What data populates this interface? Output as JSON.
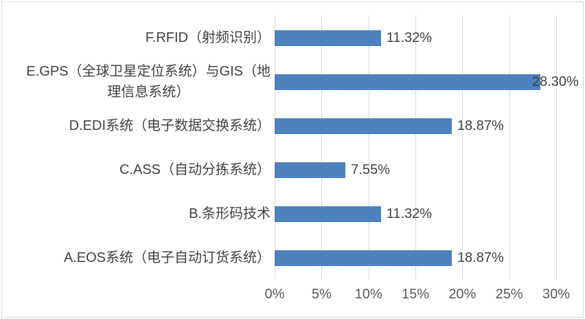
{
  "figure": {
    "background_color": "#ffffff",
    "border_color": "#d8d8d8"
  },
  "chart_data": {
    "type": "bar",
    "orientation": "horizontal",
    "title": "",
    "xlabel": "",
    "ylabel": "",
    "categories": [
      "F.RFID（射频识别）",
      "E.GPS（全球卫星定位系统）与GIS（地理信息系统）",
      "D.EDI系统（电子数据交换系统）",
      "C.ASS（自动分拣系统）",
      "B.条形码技术",
      "A.EOS系统（电子自动订货系统）"
    ],
    "categories_display": [
      "F.RFID（射频识别）",
      "E.GPS（全球卫星定位系统）与GIS（地\n理信息系统）",
      "D.EDI系统（电子数据交换系统）",
      "C.ASS（自动分拣系统）",
      "B.条形码技术",
      "A.EOS系统（电子自动订货系统）"
    ],
    "values": [
      11.32,
      28.3,
      18.87,
      7.55,
      11.32,
      18.87
    ],
    "data_labels": [
      "11.32%",
      "28.30%",
      "18.87%",
      "7.55%",
      "11.32%",
      "18.87%"
    ],
    "data_label_position": "outside-end",
    "x_ticks": [
      "0%",
      "5%",
      "10%",
      "15%",
      "20%",
      "25%",
      "30%"
    ],
    "xlim": [
      0,
      30
    ],
    "grid": true,
    "legend": false,
    "bar_color": "#4e81bd",
    "gridline_color": "#d9d9d9",
    "label_color": "#404040",
    "tick_color": "#595959"
  }
}
